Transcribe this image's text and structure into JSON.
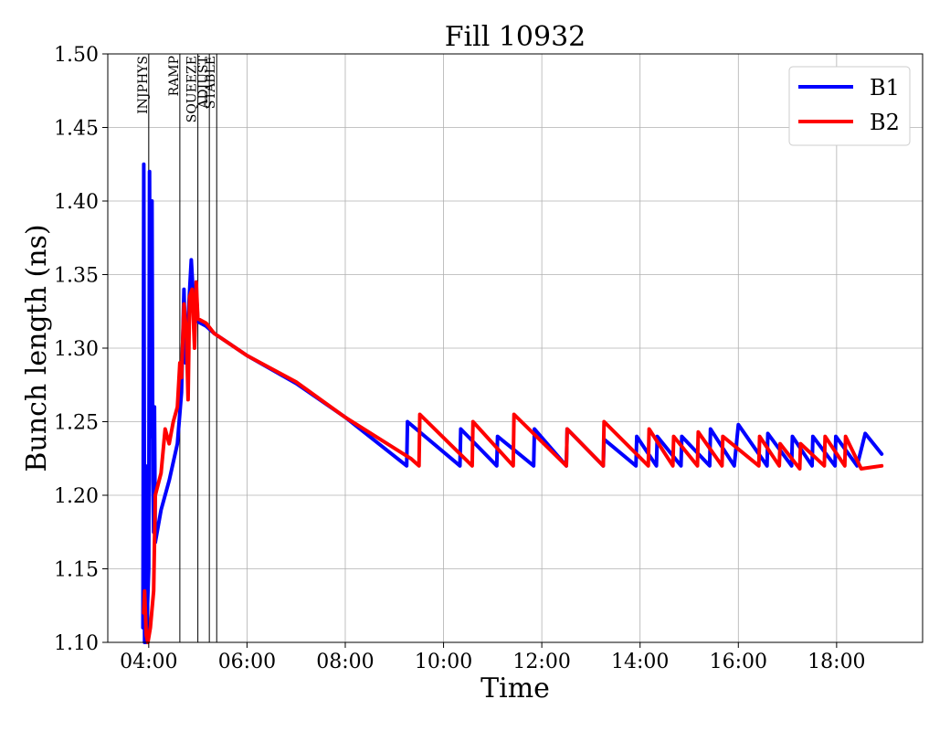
{
  "chart_data": {
    "type": "line",
    "title": "Fill 10932",
    "xlabel": "Time",
    "ylabel": "Bunch length (ns)",
    "xlim": [
      "03:10",
      "19:45"
    ],
    "ylim": [
      1.1,
      1.5
    ],
    "xticks": [
      "04:00",
      "06:00",
      "08:00",
      "10:00",
      "12:00",
      "14:00",
      "16:00",
      "18:00"
    ],
    "yticks": [
      "1.10",
      "1.15",
      "1.20",
      "1.25",
      "1.30",
      "1.35",
      "1.40",
      "1.45",
      "1.50"
    ],
    "grid": true,
    "legend_position": "top-right",
    "phases": [
      {
        "name": "INJPHYS",
        "time": "04:00"
      },
      {
        "name": "RAMP",
        "time": "04:38"
      },
      {
        "name": "SQUEEZE",
        "time": "05:00"
      },
      {
        "name": "ADJUST",
        "time": "05:14"
      },
      {
        "name": "STABLE",
        "time": "05:23"
      }
    ],
    "series": [
      {
        "name": "B1",
        "color": "#0000ff",
        "points": [
          [
            "03:53",
            1.11
          ],
          [
            "03:54",
            1.425
          ],
          [
            "03:55",
            1.1
          ],
          [
            "03:56",
            1.22
          ],
          [
            "03:57",
            1.1
          ],
          [
            "04:00",
            1.15
          ],
          [
            "04:01",
            1.42
          ],
          [
            "04:02",
            1.24
          ],
          [
            "04:04",
            1.4
          ],
          [
            "04:05",
            1.21
          ],
          [
            "04:06",
            1.175
          ],
          [
            "04:07",
            1.26
          ],
          [
            "04:08",
            1.168
          ],
          [
            "04:15",
            1.19
          ],
          [
            "04:25",
            1.21
          ],
          [
            "04:35",
            1.235
          ],
          [
            "04:40",
            1.27
          ],
          [
            "04:43",
            1.34
          ],
          [
            "04:45",
            1.29
          ],
          [
            "04:48",
            1.32
          ],
          [
            "04:52",
            1.36
          ],
          [
            "04:55",
            1.33
          ],
          [
            "04:58",
            1.34
          ],
          [
            "05:00",
            1.318
          ],
          [
            "05:10",
            1.315
          ],
          [
            "05:20",
            1.31
          ],
          [
            "06:00",
            1.295
          ],
          [
            "07:00",
            1.276
          ],
          [
            "08:00",
            1.253
          ],
          [
            "09:15",
            1.22
          ],
          [
            "09:16",
            1.25
          ],
          [
            "10:20",
            1.22
          ],
          [
            "10:21",
            1.245
          ],
          [
            "11:05",
            1.22
          ],
          [
            "11:06",
            1.24
          ],
          [
            "11:50",
            1.22
          ],
          [
            "11:51",
            1.245
          ],
          [
            "12:30",
            1.22
          ],
          [
            "12:31",
            1.245
          ],
          [
            "13:15",
            1.22
          ],
          [
            "13:16",
            1.238
          ],
          [
            "13:55",
            1.22
          ],
          [
            "13:56",
            1.24
          ],
          [
            "14:20",
            1.22
          ],
          [
            "14:21",
            1.24
          ],
          [
            "14:50",
            1.22
          ],
          [
            "14:51",
            1.24
          ],
          [
            "15:25",
            1.22
          ],
          [
            "15:26",
            1.245
          ],
          [
            "15:55",
            1.22
          ],
          [
            "16:00",
            1.248
          ],
          [
            "16:35",
            1.22
          ],
          [
            "16:36",
            1.242
          ],
          [
            "17:05",
            1.22
          ],
          [
            "17:06",
            1.24
          ],
          [
            "17:30",
            1.22
          ],
          [
            "17:31",
            1.24
          ],
          [
            "17:58",
            1.22
          ],
          [
            "17:59",
            1.24
          ],
          [
            "18:25",
            1.22
          ],
          [
            "18:35",
            1.242
          ],
          [
            "18:55",
            1.228
          ]
        ]
      },
      {
        "name": "B2",
        "color": "#ff0000",
        "points": [
          [
            "03:54",
            1.12
          ],
          [
            "03:55",
            1.135
          ],
          [
            "03:57",
            1.105
          ],
          [
            "03:59",
            1.1
          ],
          [
            "04:02",
            1.11
          ],
          [
            "04:06",
            1.135
          ],
          [
            "04:08",
            1.2
          ],
          [
            "04:15",
            1.215
          ],
          [
            "04:20",
            1.245
          ],
          [
            "04:25",
            1.235
          ],
          [
            "04:30",
            1.25
          ],
          [
            "04:35",
            1.26
          ],
          [
            "04:38",
            1.29
          ],
          [
            "04:40",
            1.28
          ],
          [
            "04:43",
            1.33
          ],
          [
            "04:46",
            1.31
          ],
          [
            "04:48",
            1.265
          ],
          [
            "04:50",
            1.335
          ],
          [
            "04:53",
            1.34
          ],
          [
            "04:56",
            1.3
          ],
          [
            "04:58",
            1.345
          ],
          [
            "05:00",
            1.32
          ],
          [
            "05:10",
            1.317
          ],
          [
            "05:20",
            1.31
          ],
          [
            "06:00",
            1.295
          ],
          [
            "07:00",
            1.277
          ],
          [
            "08:00",
            1.253
          ],
          [
            "09:20",
            1.225
          ],
          [
            "09:30",
            1.22
          ],
          [
            "09:31",
            1.255
          ],
          [
            "10:35",
            1.22
          ],
          [
            "10:36",
            1.25
          ],
          [
            "11:25",
            1.22
          ],
          [
            "11:26",
            1.255
          ],
          [
            "12:30",
            1.22
          ],
          [
            "12:31",
            1.245
          ],
          [
            "13:15",
            1.22
          ],
          [
            "13:16",
            1.25
          ],
          [
            "14:10",
            1.22
          ],
          [
            "14:11",
            1.245
          ],
          [
            "14:40",
            1.22
          ],
          [
            "14:41",
            1.24
          ],
          [
            "15:10",
            1.22
          ],
          [
            "15:11",
            1.243
          ],
          [
            "15:40",
            1.22
          ],
          [
            "15:41",
            1.24
          ],
          [
            "16:25",
            1.22
          ],
          [
            "16:26",
            1.24
          ],
          [
            "16:50",
            1.22
          ],
          [
            "16:51",
            1.235
          ],
          [
            "17:15",
            1.218
          ],
          [
            "17:16",
            1.235
          ],
          [
            "17:45",
            1.22
          ],
          [
            "17:46",
            1.24
          ],
          [
            "18:10",
            1.22
          ],
          [
            "18:11",
            1.24
          ],
          [
            "18:30",
            1.218
          ],
          [
            "18:55",
            1.22
          ]
        ]
      }
    ]
  }
}
